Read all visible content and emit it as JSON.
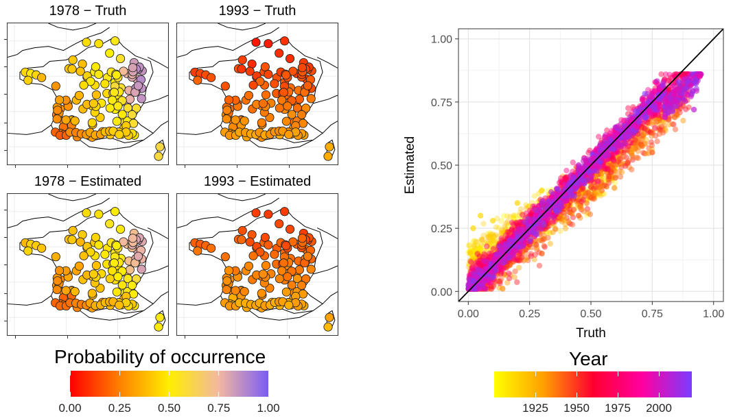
{
  "maps": {
    "panels": [
      {
        "title": "1978 − Truth",
        "mode": "truth78"
      },
      {
        "title": "1993 − Truth",
        "mode": "truth93"
      },
      {
        "title": "1978 − Estimated",
        "mode": "est78"
      },
      {
        "title": "1993 − Estimated",
        "mode": "est93"
      }
    ],
    "legend": {
      "title": "Probability of occurrence",
      "ticks": [
        "0.00",
        "0.25",
        "0.50",
        "0.75",
        "1.00"
      ],
      "colors": [
        "#ff0000",
        "#ff8000",
        "#ffee00",
        "#f2b8a0",
        "#7b5cf5"
      ]
    }
  },
  "chart_data": {
    "type": "scatter",
    "xlabel": "Truth",
    "ylabel": "Estimated",
    "xlim": [
      -0.04,
      1.04
    ],
    "ylim": [
      -0.04,
      1.04
    ],
    "xticks": [
      "0.00",
      "0.25",
      "0.50",
      "0.75",
      "1.00"
    ],
    "yticks": [
      "0.00",
      "0.25",
      "0.50",
      "0.75",
      "1.00"
    ],
    "reference_line": {
      "from": [
        -0.04,
        -0.04
      ],
      "to": [
        1.04,
        1.04
      ]
    },
    "grid": true,
    "color_by": "Year",
    "color_range": [
      1900,
      2020
    ],
    "colors": [
      "#ffff00",
      "#ffa000",
      "#ff0030",
      "#ff00a0",
      "#7b3cff"
    ],
    "series": [
      {
        "year_range": [
          1900,
          1925
        ],
        "x_range": [
          0.0,
          0.6
        ],
        "points": [
          [
            0.02,
            0.25
          ],
          [
            0.05,
            0.3
          ],
          [
            0.1,
            0.28
          ],
          [
            0.15,
            0.2
          ],
          [
            0.2,
            0.35
          ],
          [
            0.3,
            0.4
          ],
          [
            0.4,
            0.45
          ],
          [
            0.55,
            0.5
          ]
        ]
      },
      {
        "year_range": [
          1925,
          1960
        ],
        "x_range": [
          0.0,
          0.9
        ],
        "points": [
          [
            0.1,
            0.08
          ],
          [
            0.3,
            0.15
          ],
          [
            0.45,
            0.3
          ],
          [
            0.6,
            0.45
          ],
          [
            0.75,
            0.55
          ],
          [
            0.85,
            0.7
          ],
          [
            0.7,
            0.65
          ]
        ]
      },
      {
        "year_range": [
          1960,
          1990
        ],
        "x_range": [
          0.0,
          0.9
        ],
        "points": [
          [
            0.05,
            0.1
          ],
          [
            0.2,
            0.2
          ],
          [
            0.35,
            0.3
          ],
          [
            0.5,
            0.5
          ],
          [
            0.65,
            0.62
          ],
          [
            0.8,
            0.84
          ],
          [
            0.9,
            0.82
          ]
        ]
      },
      {
        "year_range": [
          1990,
          2020
        ],
        "x_range": [
          0.0,
          0.95
        ],
        "points": [
          [
            0.05,
            0.05
          ],
          [
            0.15,
            0.18
          ],
          [
            0.3,
            0.35
          ],
          [
            0.45,
            0.5
          ],
          [
            0.6,
            0.65
          ],
          [
            0.75,
            0.75
          ],
          [
            0.92,
            0.72
          ]
        ]
      }
    ],
    "legend": {
      "title": "Year",
      "ticks": [
        "1925",
        "1950",
        "1975",
        "2000"
      ],
      "tick_values": [
        1925,
        1950,
        1975,
        2000
      ]
    }
  }
}
